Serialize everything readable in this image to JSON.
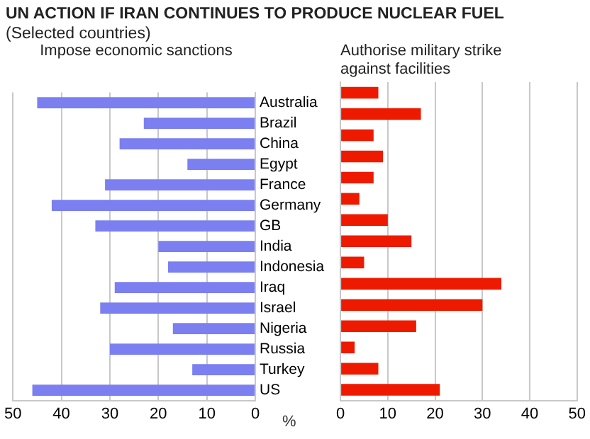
{
  "chart_data": [
    {
      "type": "bar",
      "orientation": "horizontal",
      "title": "UN ACTION IF IRAN CONTINUES TO PRODUCE NUCLEAR FUEL",
      "subtitle": "(Selected countries)",
      "xlabel": "%",
      "categories": [
        "Australia",
        "Brazil",
        "China",
        "Egypt",
        "France",
        "Germany",
        "GB",
        "India",
        "Indonesia",
        "Iraq",
        "Israel",
        "Nigeria",
        "Russia",
        "Turkey",
        "US"
      ],
      "series": [
        {
          "name": "Impose economic sanctions",
          "color": "#7b7ff0",
          "values": [
            45,
            23,
            28,
            14,
            31,
            42,
            33,
            20,
            18,
            29,
            32,
            17,
            30,
            13,
            46
          ]
        }
      ],
      "xlim": [
        50,
        0
      ],
      "xticks": [
        50,
        40,
        30,
        20,
        10,
        0
      ],
      "grid": "x",
      "legend": false
    },
    {
      "type": "bar",
      "orientation": "horizontal",
      "categories": [
        null,
        null,
        null,
        null,
        null,
        null,
        null,
        null,
        null,
        null,
        null,
        null,
        null,
        null,
        null
      ],
      "series": [
        {
          "name": "Authorise military strike against facilities",
          "color": "#ee1a00",
          "values": [
            8,
            17,
            7,
            9,
            7,
            4,
            10,
            15,
            5,
            34,
            30,
            16,
            3,
            8,
            21
          ]
        }
      ],
      "xlim": [
        0,
        50
      ],
      "xticks": [
        0,
        10,
        20,
        30,
        40,
        50
      ],
      "grid": "x",
      "legend": false,
      "tick_labels": "x"
    }
  ]
}
